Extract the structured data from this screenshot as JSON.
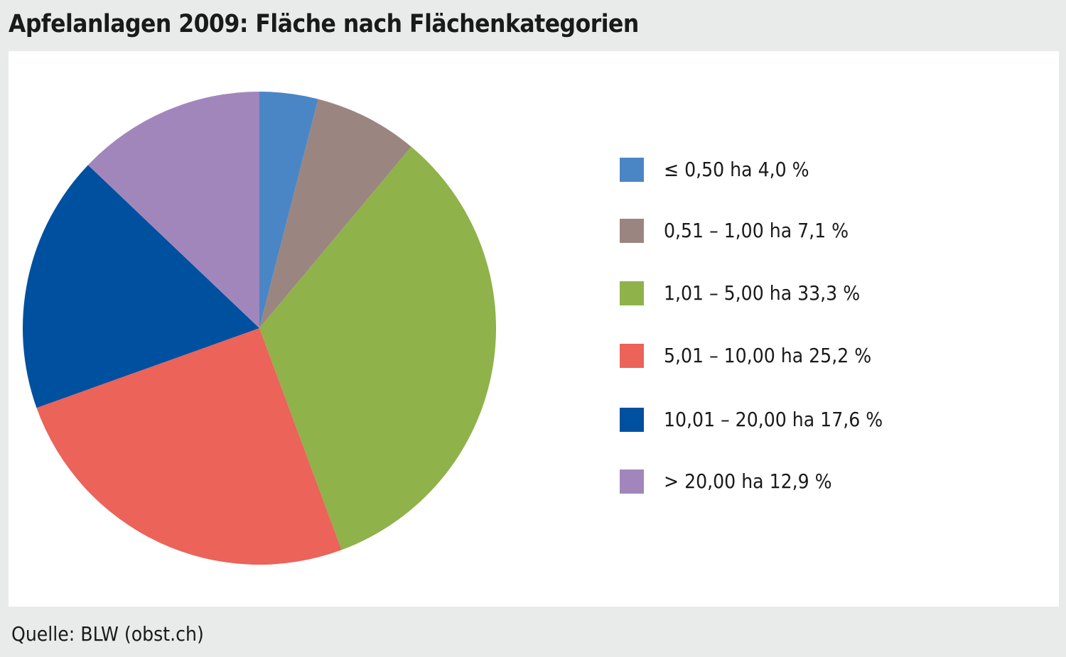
{
  "title": "Apfelanlagen 2009: Fläche nach Flächenkategorien",
  "source": "Quelle: BLW (obst.ch)",
  "chart_data": {
    "type": "pie",
    "title": "Apfelanlagen 2009: Fläche nach Flächenkategorien",
    "unit": "%",
    "start": "12 o'clock",
    "direction": "clockwise",
    "legend_position": "right",
    "slices": [
      {
        "label": "≤ 0,50 ha 4,0 %",
        "value": 4.0,
        "color": "#4a86c5"
      },
      {
        "label": "0,51 – 1,00 ha 7,1 %",
        "value": 7.1,
        "color": "#9b8580"
      },
      {
        "label": "1,01 – 5,00 ha 33,3 %",
        "value": 33.3,
        "color": "#8fb24b"
      },
      {
        "label": "5,01 – 10,00 ha 25,2 %",
        "value": 25.2,
        "color": "#eb6359"
      },
      {
        "label": "10,01 – 20,00 ha 17,6 %",
        "value": 17.6,
        "color": "#0050a0"
      },
      {
        "label": "> 20,00 ha 12,9 %",
        "value": 12.9,
        "color": "#a186bc"
      }
    ]
  }
}
